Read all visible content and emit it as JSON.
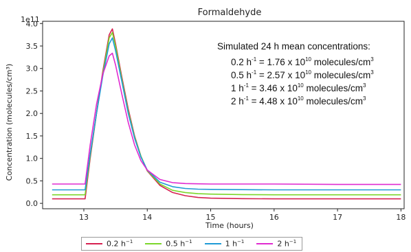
{
  "chart_data": {
    "type": "line",
    "title": "Formaldehyde",
    "xlabel": "Time (hours)",
    "ylabel": "Concentration (molecules/cm³)",
    "y_offset_text": "1e11",
    "xlim": [
      12.35,
      18.05
    ],
    "ylim": [
      -0.12,
      4.05
    ],
    "x_ticks": [
      13,
      14,
      15,
      16,
      17,
      18
    ],
    "y_ticks": [
      0.0,
      0.5,
      1.0,
      1.5,
      2.0,
      2.5,
      3.0,
      3.5,
      4.0
    ],
    "y_tick_labels": [
      "0.0",
      "0.5",
      "1.0",
      "1.5",
      "2.0",
      "2.5",
      "3.0",
      "3.5",
      "4.0"
    ],
    "grid": false,
    "legend_position": "bottom",
    "annotation": {
      "heading": "Simulated 24 h mean concentrations:",
      "lines": [
        {
          "rate": "0.2 h",
          "sup": "-1",
          "value": " = 1.76 x 10",
          "exp": "10",
          "unit": " molecules/cm",
          "unit_sup": "3"
        },
        {
          "rate": "0.5 h",
          "sup": "-1",
          "value": " = 2.57 x 10",
          "exp": "10",
          "unit": " molecules/cm",
          "unit_sup": "3"
        },
        {
          "rate": "1 h",
          "sup": "-1",
          "value": " = 3.46 x 10",
          "exp": "10",
          "unit": " molecules/cm",
          "unit_sup": "3"
        },
        {
          "rate": "2 h",
          "sup": "-1",
          "value": " = 4.48 x 10",
          "exp": "10",
          "unit": " molecules/cm",
          "unit_sup": "3"
        }
      ]
    },
    "series": [
      {
        "name": "0.2 h⁻¹",
        "name_base": "0.2 h",
        "name_sup": "−1",
        "color": "#d62050",
        "x": [
          12.5,
          13.0,
          13.02,
          13.1,
          13.2,
          13.3,
          13.4,
          13.45,
          13.5,
          13.6,
          13.7,
          13.8,
          13.9,
          14.0,
          14.2,
          14.4,
          14.6,
          14.8,
          15.0,
          15.5,
          16.0,
          17.0,
          18.0
        ],
        "y": [
          0.1,
          0.1,
          0.1,
          1.0,
          2.0,
          2.95,
          3.75,
          3.88,
          3.55,
          2.8,
          2.1,
          1.5,
          1.05,
          0.72,
          0.4,
          0.24,
          0.17,
          0.13,
          0.115,
          0.105,
          0.1,
          0.1,
          0.1
        ]
      },
      {
        "name": "0.5 h⁻¹",
        "name_base": "0.5 h",
        "name_sup": "−1",
        "color": "#7bd62a",
        "x": [
          12.5,
          13.0,
          13.02,
          13.1,
          13.2,
          13.3,
          13.4,
          13.45,
          13.5,
          13.6,
          13.7,
          13.8,
          13.9,
          14.0,
          14.2,
          14.4,
          14.6,
          14.8,
          15.0,
          15.5,
          16.0,
          17.0,
          18.0
        ],
        "y": [
          0.19,
          0.19,
          0.19,
          1.05,
          2.0,
          2.9,
          3.68,
          3.8,
          3.5,
          2.75,
          2.05,
          1.48,
          1.05,
          0.73,
          0.43,
          0.29,
          0.24,
          0.215,
          0.205,
          0.195,
          0.19,
          0.19,
          0.19
        ]
      },
      {
        "name": "1 h⁻¹",
        "name_base": "1 h",
        "name_sup": "−1",
        "color": "#1e9ad6",
        "x": [
          12.5,
          13.0,
          13.02,
          13.1,
          13.2,
          13.3,
          13.4,
          13.45,
          13.5,
          13.6,
          13.7,
          13.8,
          13.9,
          14.0,
          14.2,
          14.4,
          14.6,
          14.8,
          15.0,
          15.5,
          16.0,
          17.0,
          18.0
        ],
        "y": [
          0.3,
          0.3,
          0.3,
          1.1,
          2.0,
          2.85,
          3.55,
          3.68,
          3.4,
          2.7,
          2.0,
          1.45,
          1.03,
          0.74,
          0.47,
          0.37,
          0.33,
          0.315,
          0.31,
          0.305,
          0.3,
          0.3,
          0.3
        ]
      },
      {
        "name": "2 h⁻¹",
        "name_base": "2 h",
        "name_sup": "−1",
        "color": "#e02ad0",
        "x": [
          12.5,
          13.0,
          13.02,
          13.1,
          13.2,
          13.3,
          13.4,
          13.45,
          13.5,
          13.6,
          13.7,
          13.8,
          13.9,
          14.0,
          14.2,
          14.4,
          14.6,
          14.8,
          15.0,
          15.5,
          16.0,
          17.0,
          18.0
        ],
        "y": [
          0.43,
          0.43,
          0.43,
          1.3,
          2.2,
          2.88,
          3.28,
          3.34,
          3.08,
          2.42,
          1.8,
          1.3,
          0.95,
          0.74,
          0.53,
          0.46,
          0.44,
          0.435,
          0.43,
          0.43,
          0.43,
          0.42,
          0.42
        ]
      }
    ]
  }
}
